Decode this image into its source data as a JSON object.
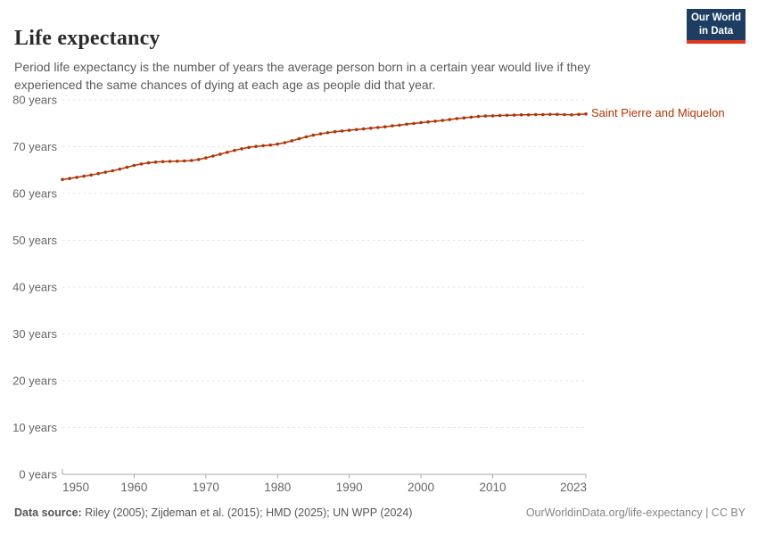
{
  "header": {
    "title": "Life expectancy",
    "subtitle": "Period life expectancy is the number of years the average person born in a certain year would live if they experienced the same chances of dying at each age as people did that year.",
    "logo": {
      "line1": "Our World",
      "line2": "in Data"
    }
  },
  "footer": {
    "source_label": "Data source:",
    "source_text": " Riley (2005); Zijdeman et al. (2015); HMD (2025); UN WPP (2024)",
    "right_text": "OurWorldinData.org/life-expectancy | CC BY"
  },
  "chart_data": {
    "type": "line",
    "title": "Life expectancy",
    "entity_label": "Saint Pierre and Miquelon",
    "xlabel": "",
    "ylabel": "",
    "xlim": [
      1950,
      2023
    ],
    "ylim": [
      0,
      80
    ],
    "grid": true,
    "legend_position": "right-of-line-end",
    "y_ticks": [
      0,
      10,
      20,
      30,
      40,
      50,
      60,
      70,
      80
    ],
    "y_tick_suffix": " years",
    "x_ticks": [
      1950,
      1960,
      1970,
      1980,
      1990,
      2000,
      2010,
      2023
    ],
    "x": [
      1950,
      1951,
      1952,
      1953,
      1954,
      1955,
      1956,
      1957,
      1958,
      1959,
      1960,
      1961,
      1962,
      1963,
      1964,
      1965,
      1966,
      1967,
      1968,
      1969,
      1970,
      1971,
      1972,
      1973,
      1974,
      1975,
      1976,
      1977,
      1978,
      1979,
      1980,
      1981,
      1982,
      1983,
      1984,
      1985,
      1986,
      1987,
      1988,
      1989,
      1990,
      1991,
      1992,
      1993,
      1994,
      1995,
      1996,
      1997,
      1998,
      1999,
      2000,
      2001,
      2002,
      2003,
      2004,
      2005,
      2006,
      2007,
      2008,
      2009,
      2010,
      2011,
      2012,
      2013,
      2014,
      2015,
      2016,
      2017,
      2018,
      2019,
      2020,
      2021,
      2022,
      2023
    ],
    "values": [
      63.0,
      63.2,
      63.45,
      63.7,
      63.95,
      64.25,
      64.55,
      64.85,
      65.2,
      65.6,
      66.0,
      66.3,
      66.55,
      66.7,
      66.8,
      66.85,
      66.9,
      66.95,
      67.05,
      67.25,
      67.6,
      68.0,
      68.4,
      68.8,
      69.2,
      69.55,
      69.85,
      70.05,
      70.2,
      70.35,
      70.55,
      70.85,
      71.25,
      71.7,
      72.1,
      72.45,
      72.75,
      73.0,
      73.2,
      73.35,
      73.5,
      73.65,
      73.8,
      73.95,
      74.1,
      74.25,
      74.45,
      74.6,
      74.8,
      74.95,
      75.15,
      75.3,
      75.45,
      75.6,
      75.8,
      76.0,
      76.15,
      76.3,
      76.45,
      76.55,
      76.6,
      76.65,
      76.7,
      76.75,
      76.8,
      76.8,
      76.85,
      76.85,
      76.9,
      76.9,
      76.85,
      76.8,
      76.9,
      77.0
    ],
    "line_color": "#b13507",
    "grid_color": "#e0e0e0",
    "axis_color": "#a8a8a8",
    "tick_label_color": "#666666"
  }
}
